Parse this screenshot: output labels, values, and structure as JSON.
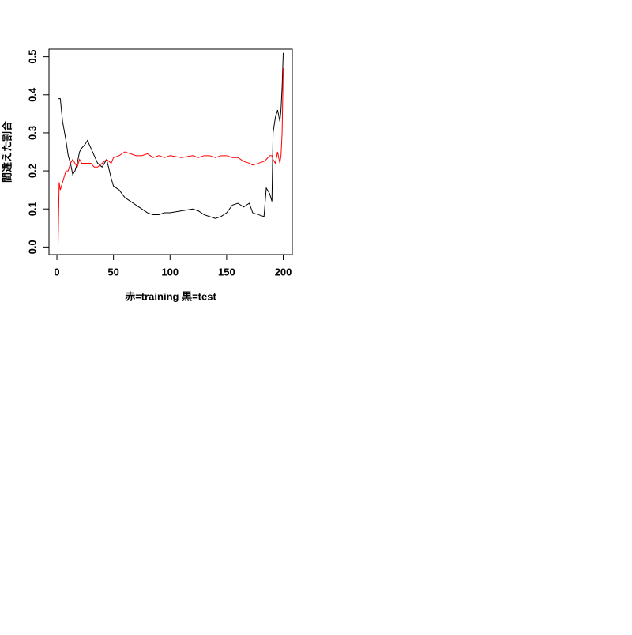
{
  "chart_data": {
    "type": "line",
    "x_label": "赤=training 黒=test",
    "y_label": "間違えた割合",
    "x": [
      1,
      2,
      3,
      5,
      8,
      10,
      12,
      14,
      16,
      18,
      20,
      22,
      25,
      27,
      30,
      33,
      36,
      40,
      44,
      48,
      50,
      55,
      60,
      65,
      70,
      75,
      80,
      85,
      90,
      95,
      100,
      110,
      120,
      125,
      130,
      135,
      140,
      145,
      150,
      155,
      160,
      165,
      170,
      173,
      178,
      183,
      185,
      188,
      190,
      191,
      193,
      195,
      197,
      198,
      199,
      200
    ],
    "series": [
      {
        "color": "#000000",
        "values": [
          0.39,
          0.39,
          0.39,
          0.33,
          0.28,
          0.24,
          0.22,
          0.19,
          0.2,
          0.22,
          0.25,
          0.26,
          0.27,
          0.28,
          0.26,
          0.24,
          0.22,
          0.21,
          0.23,
          0.18,
          0.16,
          0.15,
          0.13,
          0.12,
          0.11,
          0.1,
          0.09,
          0.085,
          0.085,
          0.09,
          0.09,
          0.095,
          0.1,
          0.095,
          0.085,
          0.08,
          0.075,
          0.08,
          0.09,
          0.11,
          0.115,
          0.105,
          0.115,
          0.09,
          0.085,
          0.08,
          0.155,
          0.14,
          0.12,
          0.3,
          0.34,
          0.36,
          0.33,
          0.36,
          0.42,
          0.51
        ]
      },
      {
        "color": "#ff0000",
        "values": [
          0.0,
          0.17,
          0.15,
          0.17,
          0.2,
          0.2,
          0.22,
          0.23,
          0.22,
          0.21,
          0.23,
          0.22,
          0.22,
          0.22,
          0.22,
          0.21,
          0.21,
          0.22,
          0.23,
          0.22,
          0.235,
          0.24,
          0.25,
          0.245,
          0.24,
          0.24,
          0.245,
          0.235,
          0.24,
          0.235,
          0.24,
          0.235,
          0.24,
          0.235,
          0.24,
          0.24,
          0.235,
          0.24,
          0.24,
          0.235,
          0.235,
          0.225,
          0.22,
          0.215,
          0.22,
          0.225,
          0.23,
          0.24,
          0.24,
          0.23,
          0.22,
          0.25,
          0.22,
          0.24,
          0.3,
          0.47
        ]
      }
    ],
    "xlim": [
      -7,
      208
    ],
    "ylim": [
      -0.02,
      0.52
    ],
    "xticks": [
      0,
      50,
      100,
      150,
      200
    ],
    "yticks": [
      {
        "value": 0,
        "label": "0.0"
      },
      0.1,
      0.2,
      0.3,
      0.4,
      0.5
    ]
  }
}
